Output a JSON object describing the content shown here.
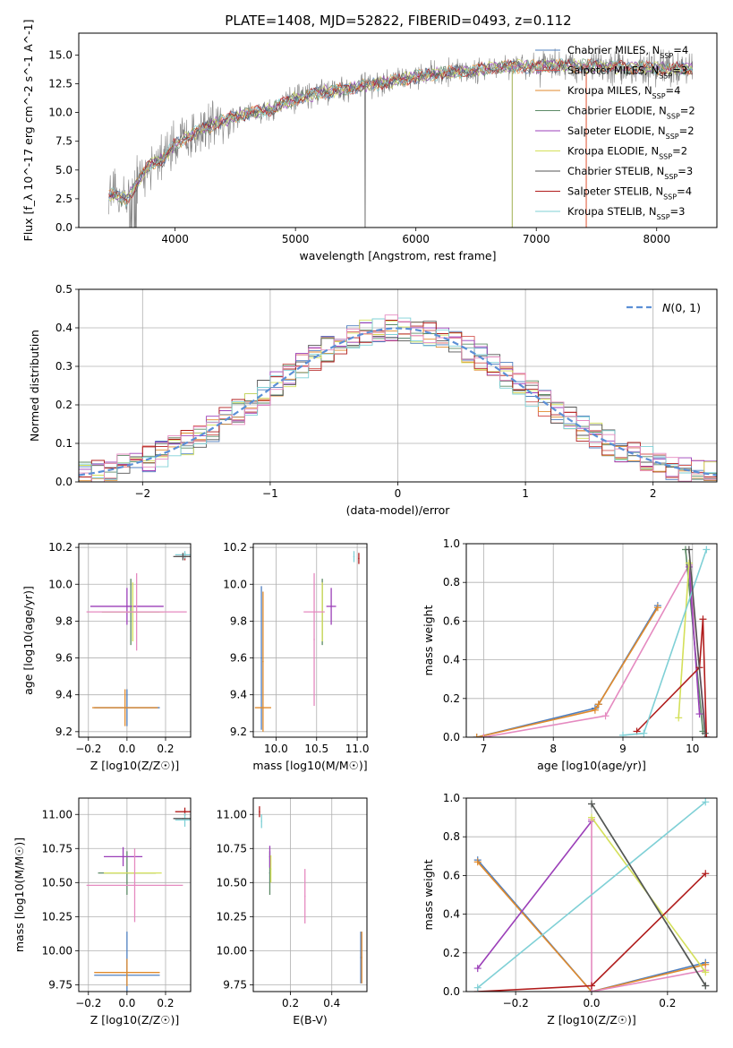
{
  "figure": {
    "title": "PLATE=1408, MJD=52822, FIBERID=0493, z=0.112"
  },
  "chart_data": [
    {
      "id": "spectrum",
      "type": "line",
      "title": "PLATE=1408, MJD=52822, FIBERID=0493, z=0.112",
      "xlabel": "wavelength [Angstrom, rest frame]",
      "ylabel": "Flux [f_λ 10^-17 erg cm^-2 s^-1 A^-1]",
      "xlim": [
        3200,
        8500
      ],
      "ylim": [
        0,
        16.9
      ],
      "xticks": [
        4000,
        5000,
        6000,
        7000,
        8000
      ],
      "yticks": [
        "0.0",
        "2.5",
        "5.0",
        "7.5",
        "10.0",
        "12.5",
        "15.0"
      ],
      "grid": false,
      "legend_position": "upper-right",
      "series": [
        {
          "name": "Chabrier MILES, N_SSP=4",
          "color": "#4f7fbf"
        },
        {
          "name": "Salpeter MILES, N_SSP=3",
          "color": "#d45a55"
        },
        {
          "name": "Kroupa MILES, N_SSP=4",
          "color": "#e08a2c"
        },
        {
          "name": "Chabrier ELODIE, N_SSP=2",
          "color": "#5c8a66"
        },
        {
          "name": "Salpeter ELODIE, N_SSP=2",
          "color": "#9b3fb8"
        },
        {
          "name": "Kroupa ELODIE, N_SSP=2",
          "color": "#d4e05a"
        },
        {
          "name": "Chabrier STELIB, N_SSP=3",
          "color": "#555555"
        },
        {
          "name": "Salpeter STELIB, N_SSP=4",
          "color": "#b01c1c"
        },
        {
          "name": "Kroupa STELIB, N_SSP=3",
          "color": "#7fd0d6"
        }
      ],
      "data_color": "#808080",
      "continuum": [
        [
          3450,
          2.9
        ],
        [
          3600,
          2.4
        ],
        [
          3700,
          4.2
        ],
        [
          3800,
          5.6
        ],
        [
          3900,
          5.9
        ],
        [
          4000,
          7.3
        ],
        [
          4200,
          8.4
        ],
        [
          4400,
          9.3
        ],
        [
          4600,
          9.9
        ],
        [
          4800,
          10.3
        ],
        [
          5000,
          11.2
        ],
        [
          5200,
          11.7
        ],
        [
          5500,
          12.2
        ],
        [
          5800,
          12.7
        ],
        [
          6000,
          13.1
        ],
        [
          6200,
          13.4
        ],
        [
          6500,
          13.7
        ],
        [
          6800,
          14.0
        ],
        [
          7000,
          14.0
        ],
        [
          7300,
          14.1
        ],
        [
          7500,
          14.0
        ],
        [
          7800,
          13.9
        ],
        [
          8100,
          13.8
        ],
        [
          8300,
          13.8
        ]
      ]
    },
    {
      "id": "residuals",
      "type": "line",
      "xlabel": "(data-model)/error",
      "ylabel": "Normed distribution",
      "xlim": [
        -2.5,
        2.5
      ],
      "ylim": [
        0,
        0.5
      ],
      "xticks": [
        "−2",
        "−1",
        "0",
        "1",
        "2"
      ],
      "yticks": [
        "0.0",
        "0.1",
        "0.2",
        "0.3",
        "0.4",
        "0.5"
      ],
      "grid": true,
      "legend_position": "upper-right",
      "legend": [
        {
          "name": "N(0,1)",
          "color": "#5b8fd6"
        }
      ]
    },
    {
      "id": "age-vs-Z",
      "type": "scatter",
      "xlabel": "Z [log10(Z/Z☉)]",
      "ylabel": "age [log10(age/yr)]",
      "xlim": [
        -0.25,
        0.33
      ],
      "ylim": [
        9.17,
        10.22
      ],
      "xticks": [
        "−0.2",
        "0.0",
        "0.2"
      ],
      "yticks": [
        "9.2",
        "9.4",
        "9.6",
        "9.8",
        "10.0",
        "10.2"
      ],
      "grid": true,
      "points": [
        {
          "x": 0.0,
          "y": 9.33,
          "xerr": 0.17,
          "yerr": 0.1,
          "c": "#4f7fbf"
        },
        {
          "x": -0.01,
          "y": 9.33,
          "xerr": 0.17,
          "yerr": 0.1,
          "c": "#e08a2c"
        },
        {
          "x": 0.02,
          "y": 9.85,
          "xerr": 0.15,
          "yerr": 0.18,
          "c": "#5c8a66"
        },
        {
          "x": 0.0,
          "y": 9.88,
          "xerr": 0.19,
          "yerr": 0.1,
          "c": "#9b3fb8"
        },
        {
          "x": 0.03,
          "y": 9.85,
          "xerr": 0.16,
          "yerr": 0.16,
          "c": "#d4e05a"
        },
        {
          "x": 0.05,
          "y": 9.85,
          "xerr": 0.26,
          "yerr": 0.21,
          "c": "#e58ac0"
        },
        {
          "x": 0.3,
          "y": 10.15,
          "xerr": 0.05,
          "yerr": 0.02,
          "c": "#b01c1c"
        },
        {
          "x": 0.3,
          "y": 10.16,
          "xerr": 0.05,
          "yerr": 0.02,
          "c": "#7fd0d6"
        },
        {
          "x": 0.29,
          "y": 10.15,
          "xerr": 0.05,
          "yerr": 0.02,
          "c": "#555555"
        }
      ]
    },
    {
      "id": "age-vs-mass",
      "type": "scatter",
      "xlabel": "mass [log10(M/M☉)]",
      "ylabel": "",
      "xlim": [
        9.72,
        11.12
      ],
      "ylim": [
        9.17,
        10.22
      ],
      "xticks": [
        "10.0",
        "10.5",
        "11.0"
      ],
      "yticks": [
        "9.2",
        "9.4",
        "9.6",
        "9.8",
        "10.0",
        "10.2"
      ],
      "grid": true,
      "points": [
        {
          "x": 9.82,
          "y": 9.6,
          "xerr": 0.0,
          "yerr": 0.39,
          "c": "#4f7fbf"
        },
        {
          "x": 9.84,
          "y": 9.58,
          "xerr": 0.0,
          "yerr": 0.38,
          "c": "#e08a2c"
        },
        {
          "x": 9.84,
          "y": 9.33,
          "xerr": 0.1,
          "yerr": 0.0,
          "c": "#e08a2c"
        },
        {
          "x": 10.57,
          "y": 9.85,
          "xerr": 0.0,
          "yerr": 0.18,
          "c": "#5c8a66"
        },
        {
          "x": 10.68,
          "y": 9.88,
          "xerr": 0.06,
          "yerr": 0.1,
          "c": "#9b3fb8"
        },
        {
          "x": 10.57,
          "y": 9.85,
          "xerr": 0.0,
          "yerr": 0.16,
          "c": "#d4e05a"
        },
        {
          "x": 10.47,
          "y": 9.7,
          "xerr": 0.0,
          "yerr": 0.36,
          "c": "#e58ac0"
        },
        {
          "x": 10.47,
          "y": 9.85,
          "xerr": 0.13,
          "yerr": 0.0,
          "c": "#e58ac0"
        },
        {
          "x": 11.02,
          "y": 10.14,
          "xerr": 0.0,
          "yerr": 0.03,
          "c": "#b01c1c"
        },
        {
          "x": 10.96,
          "y": 10.15,
          "xerr": 0.0,
          "yerr": 0.03,
          "c": "#7fd0d6"
        }
      ]
    },
    {
      "id": "weight-vs-age",
      "type": "line",
      "xlabel": "age [log10(age/yr)]",
      "ylabel": "mass weight",
      "xlim": [
        6.75,
        10.35
      ],
      "ylim": [
        0,
        1.0
      ],
      "xticks": [
        "7",
        "8",
        "9",
        "10"
      ],
      "yticks": [
        "0.0",
        "0.2",
        "0.4",
        "0.6",
        "0.8",
        "1.0"
      ],
      "grid": true,
      "series": [
        {
          "c": "#4f7fbf",
          "x": [
            6.9,
            8.6,
            8.65,
            9.5
          ],
          "y": [
            0.0,
            0.15,
            0.17,
            0.68
          ]
        },
        {
          "c": "#e08a2c",
          "x": [
            6.9,
            8.6,
            8.65,
            9.5
          ],
          "y": [
            0.0,
            0.14,
            0.17,
            0.67
          ]
        },
        {
          "c": "#e58ac0",
          "x": [
            7.0,
            8.75,
            9.95,
            10.2
          ],
          "y": [
            0.0,
            0.11,
            0.89,
            0.0
          ]
        },
        {
          "c": "#5c8a66",
          "x": [
            9.9,
            10.15
          ],
          "y": [
            0.97,
            0.03
          ]
        },
        {
          "c": "#9b3fb8",
          "x": [
            9.95,
            10.1
          ],
          "y": [
            0.88,
            0.12
          ]
        },
        {
          "c": "#d4e05a",
          "x": [
            9.8,
            9.95
          ],
          "y": [
            0.1,
            0.9
          ]
        },
        {
          "c": "#b01c1c",
          "x": [
            9.2,
            10.1,
            10.15,
            10.2
          ],
          "y": [
            0.03,
            0.36,
            0.61,
            0.0
          ]
        },
        {
          "c": "#7fd0d6",
          "x": [
            9.0,
            9.3,
            10.2
          ],
          "y": [
            0.01,
            0.02,
            0.97
          ]
        },
        {
          "c": "#555555",
          "x": [
            9.95,
            10.18
          ],
          "y": [
            0.97,
            0.02
          ]
        }
      ]
    },
    {
      "id": "mass-vs-Z",
      "type": "scatter",
      "xlabel": "Z [log10(Z/Z☉)]",
      "ylabel": "mass [log10(M/M☉)]",
      "xlim": [
        -0.25,
        0.33
      ],
      "ylim": [
        9.7,
        11.12
      ],
      "xticks": [
        "−0.2",
        "0.0",
        "0.2"
      ],
      "yticks": [
        "9.75",
        "10.00",
        "10.25",
        "10.50",
        "10.75",
        "11.00"
      ],
      "grid": true,
      "points": [
        {
          "x": 0.0,
          "y": 9.82,
          "xerr": 0.17,
          "yerr": 0.32,
          "c": "#4f7fbf"
        },
        {
          "x": 0.0,
          "y": 9.84,
          "xerr": 0.17,
          "yerr": 0.1,
          "c": "#e08a2c"
        },
        {
          "x": 0.0,
          "y": 10.57,
          "xerr": 0.15,
          "yerr": 0.16,
          "c": "#5c8a66"
        },
        {
          "x": -0.02,
          "y": 10.69,
          "xerr": 0.1,
          "yerr": 0.07,
          "c": "#9b3fb8"
        },
        {
          "x": 0.03,
          "y": 10.57,
          "xerr": 0.15,
          "yerr": 0.0,
          "c": "#d4e05a"
        },
        {
          "x": 0.04,
          "y": 10.48,
          "xerr": 0.25,
          "yerr": 0.27,
          "c": "#e58ac0"
        },
        {
          "x": 0.3,
          "y": 11.02,
          "xerr": 0.05,
          "yerr": 0.03,
          "c": "#b01c1c"
        },
        {
          "x": 0.3,
          "y": 10.96,
          "xerr": 0.05,
          "yerr": 0.05,
          "c": "#7fd0d6"
        },
        {
          "x": 0.29,
          "y": 10.97,
          "xerr": 0.05,
          "yerr": 0.0,
          "c": "#555555"
        }
      ]
    },
    {
      "id": "mass-vs-EBV",
      "type": "scatter",
      "xlabel": "E(B-V)",
      "ylabel": "",
      "xlim": [
        0.02,
        0.57
      ],
      "ylim": [
        9.7,
        11.12
      ],
      "xticks": [
        "0.2",
        "0.4"
      ],
      "yticks": [
        "9.75",
        "10.00",
        "10.25",
        "10.50",
        "10.75",
        "11.00"
      ],
      "grid": true,
      "points": [
        {
          "x": 0.54,
          "y": 9.95,
          "xerr": 0.0,
          "yerr": 0.19,
          "c": "#4f7fbf"
        },
        {
          "x": 0.545,
          "y": 9.95,
          "xerr": 0.0,
          "yerr": 0.19,
          "c": "#e08a2c"
        },
        {
          "x": 0.1,
          "y": 10.57,
          "xerr": 0.0,
          "yerr": 0.16,
          "c": "#5c8a66"
        },
        {
          "x": 0.1,
          "y": 10.69,
          "xerr": 0.0,
          "yerr": 0.08,
          "c": "#9b3fb8"
        },
        {
          "x": 0.105,
          "y": 10.6,
          "xerr": 0.0,
          "yerr": 0.1,
          "c": "#d4e05a"
        },
        {
          "x": 0.27,
          "y": 10.4,
          "xerr": 0.0,
          "yerr": 0.2,
          "c": "#e58ac0"
        },
        {
          "x": 0.05,
          "y": 11.02,
          "xerr": 0.0,
          "yerr": 0.04,
          "c": "#b01c1c"
        },
        {
          "x": 0.06,
          "y": 10.95,
          "xerr": 0.0,
          "yerr": 0.05,
          "c": "#7fd0d6"
        }
      ]
    },
    {
      "id": "weight-vs-Z",
      "type": "line",
      "xlabel": "Z [log10(Z/Z☉)]",
      "ylabel": "mass weight",
      "xlim": [
        -0.33,
        0.33
      ],
      "ylim": [
        0,
        1.0
      ],
      "xticks": [
        "−0.2",
        "0.0",
        "0.2"
      ],
      "yticks": [
        "0.0",
        "0.2",
        "0.4",
        "0.6",
        "0.8",
        "1.0"
      ],
      "grid": true,
      "series": [
        {
          "c": "#4f7fbf",
          "x": [
            -0.3,
            0.0,
            0.3
          ],
          "y": [
            0.68,
            0.0,
            0.15
          ]
        },
        {
          "c": "#e08a2c",
          "x": [
            -0.3,
            0.0,
            0.3
          ],
          "y": [
            0.67,
            0.0,
            0.14
          ]
        },
        {
          "c": "#9b3fb8",
          "x": [
            -0.3,
            0.0
          ],
          "y": [
            0.12,
            0.88
          ]
        },
        {
          "c": "#e58ac0",
          "x": [
            0.0,
            0.0,
            0.3
          ],
          "y": [
            0.89,
            0.0,
            0.11
          ]
        },
        {
          "c": "#d4e05a",
          "x": [
            0.0,
            0.3
          ],
          "y": [
            0.9,
            0.1
          ]
        },
        {
          "c": "#5c8a66",
          "x": [
            0.0,
            0.3
          ],
          "y": [
            0.97,
            0.03
          ]
        },
        {
          "c": "#b01c1c",
          "x": [
            -0.3,
            0.0,
            0.3
          ],
          "y": [
            0.0,
            0.03,
            0.61
          ]
        },
        {
          "c": "#7fd0d6",
          "x": [
            -0.3,
            0.3
          ],
          "y": [
            0.02,
            0.98
          ]
        },
        {
          "c": "#555555",
          "x": [
            0.0,
            0.3
          ],
          "y": [
            0.97,
            0.03
          ]
        }
      ]
    }
  ]
}
